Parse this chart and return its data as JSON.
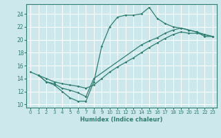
{
  "xlabel": "Humidex (Indice chaleur)",
  "background_color": "#cce8ec",
  "grid_color": "#ffffff",
  "line_color": "#2e7d6e",
  "xlim": [
    -0.5,
    23.5
  ],
  "ylim": [
    9.5,
    25.5
  ],
  "xticks": [
    0,
    1,
    2,
    3,
    4,
    5,
    6,
    7,
    8,
    9,
    10,
    11,
    12,
    13,
    14,
    15,
    16,
    17,
    18,
    19,
    20,
    21,
    22,
    23
  ],
  "yticks": [
    10,
    12,
    14,
    16,
    18,
    20,
    22,
    24
  ],
  "line1_x": [
    0,
    1,
    2,
    3,
    4,
    5,
    6,
    7,
    8,
    9,
    10,
    11,
    12,
    13,
    14,
    15,
    16,
    17,
    18,
    19,
    20,
    21,
    22,
    23
  ],
  "line1_y": [
    15,
    14.5,
    13.5,
    13,
    12,
    11,
    10.5,
    10.5,
    13.5,
    19,
    22,
    23.5,
    23.8,
    23.8,
    24,
    25,
    23.3,
    22.5,
    22,
    21.8,
    21.5,
    21.2,
    20.5,
    20.5
  ],
  "line2_x": [
    1,
    2,
    3,
    4,
    5,
    6,
    7,
    8,
    14,
    15,
    16,
    17,
    18,
    19,
    20,
    21,
    22,
    23
  ],
  "line2_y": [
    14.5,
    13.5,
    13.2,
    12.5,
    12.2,
    11.8,
    11.2,
    14.0,
    19.2,
    19.8,
    20.3,
    21.0,
    21.5,
    21.8,
    21.5,
    21.2,
    20.8,
    20.5
  ],
  "line3_x": [
    1,
    2,
    3,
    4,
    5,
    6,
    7,
    8,
    9,
    10,
    11,
    12,
    13,
    14,
    15,
    16,
    17,
    18,
    19,
    20,
    21,
    22,
    23
  ],
  "line3_y": [
    14.5,
    14.0,
    13.5,
    13.2,
    13.0,
    12.8,
    12.5,
    13.0,
    14.0,
    15.0,
    15.8,
    16.5,
    17.2,
    18.0,
    18.8,
    19.5,
    20.2,
    20.8,
    21.2,
    21.0,
    21.0,
    20.8,
    20.5
  ]
}
